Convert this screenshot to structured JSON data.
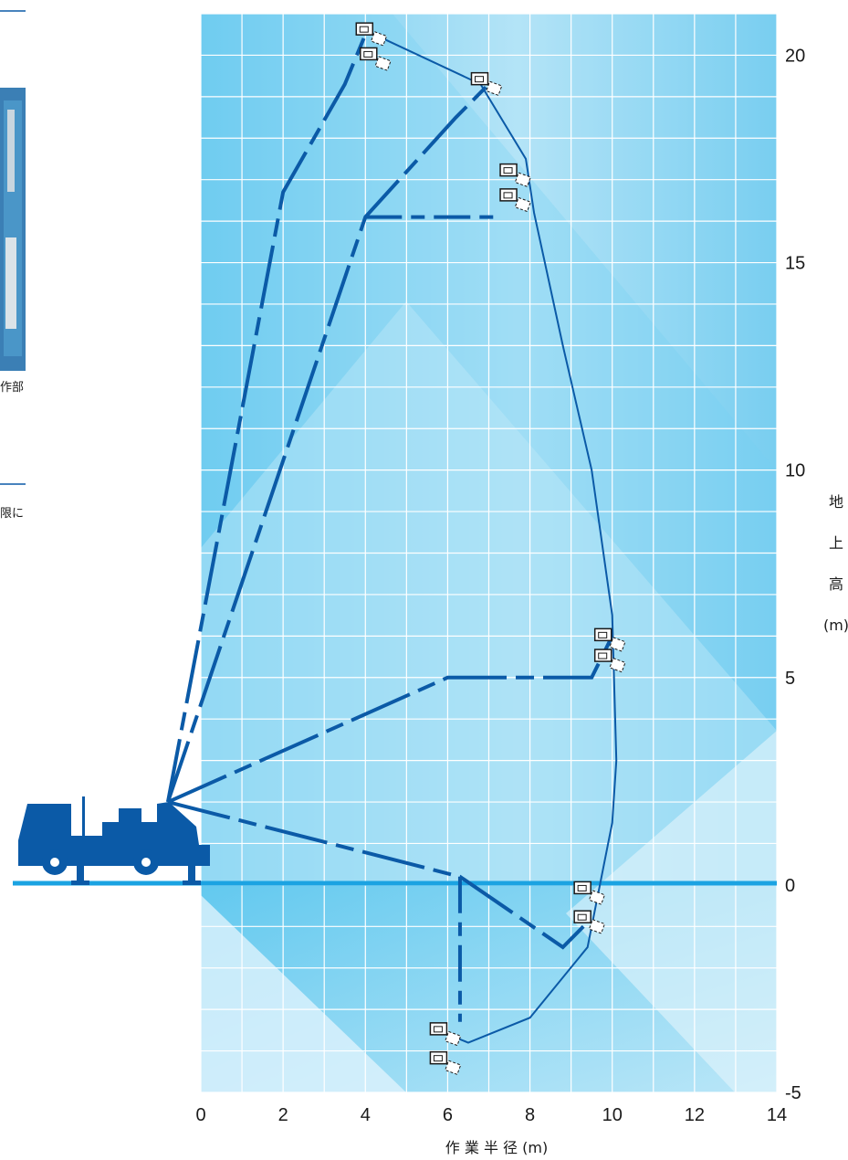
{
  "left_fragments": {
    "caption_fragment": "作部",
    "body_fragment": "限に"
  },
  "chart_data": {
    "type": "area",
    "title": "",
    "xlabel": "作 業 半 径 (m)",
    "ylabel": "地 上 高 (m)",
    "xlim": [
      0,
      14
    ],
    "ylim": [
      -5,
      21
    ],
    "grid": true,
    "x_ticks": [
      "0",
      "2",
      "4",
      "6",
      "8",
      "10",
      "12",
      "14"
    ],
    "y_ticks": [
      "-5",
      "0",
      "5",
      "10",
      "15",
      "20"
    ],
    "boom_origin": [
      -0.8,
      2.0
    ],
    "envelope": [
      [
        4.0,
        20.6
      ],
      [
        6.8,
        19.3
      ],
      [
        7.9,
        17.5
      ],
      [
        8.1,
        16.2
      ],
      [
        8.8,
        13.0
      ],
      [
        9.5,
        10.0
      ],
      [
        10.0,
        6.5
      ],
      [
        10.1,
        3.0
      ],
      [
        10.0,
        1.5
      ],
      [
        9.4,
        -1.5
      ],
      [
        8.0,
        -3.2
      ],
      [
        6.5,
        -3.8
      ],
      [
        6.0,
        -3.6
      ]
    ],
    "boom_paths": [
      {
        "name": "",
        "points": [
          [
            -0.8,
            2.0
          ],
          [
            2.0,
            16.7
          ],
          [
            3.5,
            19.3
          ],
          [
            4.0,
            20.5
          ]
        ]
      },
      {
        "name": "",
        "points": [
          [
            -0.8,
            2.0
          ],
          [
            4.0,
            16.1
          ],
          [
            6.2,
            18.5
          ],
          [
            7.0,
            19.3
          ]
        ]
      },
      {
        "name": "",
        "points": [
          [
            -0.8,
            2.0
          ],
          [
            6.0,
            5.0
          ],
          [
            9.5,
            5.0
          ],
          [
            10.0,
            6.0
          ]
        ]
      },
      {
        "name": "",
        "points": [
          [
            -0.8,
            2.0
          ],
          [
            6.3,
            0.2
          ],
          [
            8.8,
            -1.5
          ],
          [
            9.3,
            -1.0
          ]
        ]
      }
    ],
    "jib_dashes": [
      {
        "name": "",
        "points": [
          [
            4.0,
            16.1
          ],
          [
            7.3,
            16.1
          ]
        ]
      },
      {
        "name": "",
        "points": [
          [
            6.3,
            0.2
          ],
          [
            6.3,
            -3.3
          ]
        ]
      }
    ],
    "baskets": [
      [
        4.0,
        20.6
      ],
      [
        4.1,
        20.0
      ],
      [
        6.8,
        19.4
      ],
      [
        7.5,
        17.2
      ],
      [
        7.5,
        16.6
      ],
      [
        9.8,
        6.0
      ],
      [
        9.8,
        5.5
      ],
      [
        9.3,
        -0.8
      ],
      [
        9.3,
        -0.1
      ],
      [
        5.8,
        -3.5
      ],
      [
        5.8,
        -4.2
      ]
    ],
    "colors": {
      "bg_light": "#dff2fc",
      "bg_mid": "#8fd6f3",
      "bg_dark": "#5ac6ee",
      "grid": "#ffffff",
      "boom": "#0b5aa7",
      "envelope": "#0b5aa7",
      "truck": "#0b5aa7",
      "ground": "#1ba3e2"
    }
  }
}
